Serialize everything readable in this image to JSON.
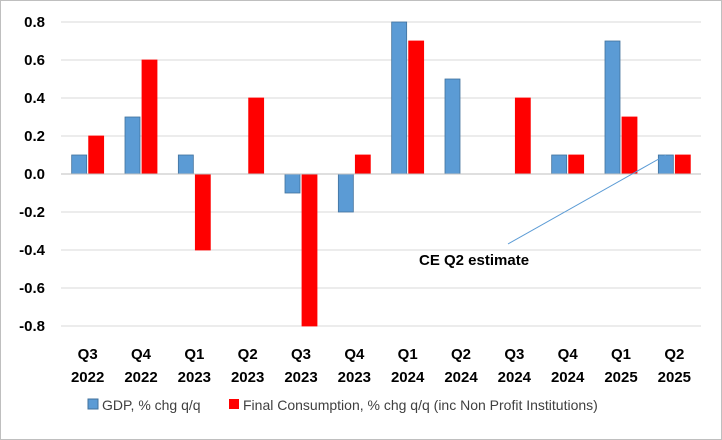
{
  "chart_data": {
    "type": "bar",
    "title": "",
    "xlabel": "",
    "ylabel": "",
    "ylim": [
      -0.8,
      0.8
    ],
    "yticks": [
      0.8,
      0.6,
      0.4,
      0.2,
      0.0,
      -0.2,
      -0.4,
      -0.6,
      -0.8
    ],
    "ytick_labels": [
      "0.8",
      "0.6",
      "0.4",
      "0.2",
      "0.0",
      "-0.2",
      "-0.4",
      "-0.6",
      "-0.8"
    ],
    "grid": true,
    "legend_position": "bottom",
    "categories": [
      {
        "quarter": "Q3",
        "year": "2022"
      },
      {
        "quarter": "Q4",
        "year": "2022"
      },
      {
        "quarter": "Q1",
        "year": "2023"
      },
      {
        "quarter": "Q2",
        "year": "2023"
      },
      {
        "quarter": "Q3",
        "year": "2023"
      },
      {
        "quarter": "Q4",
        "year": "2023"
      },
      {
        "quarter": "Q1",
        "year": "2024"
      },
      {
        "quarter": "Q2",
        "year": "2024"
      },
      {
        "quarter": "Q3",
        "year": "2024"
      },
      {
        "quarter": "Q4",
        "year": "2024"
      },
      {
        "quarter": "Q1",
        "year": "2025"
      },
      {
        "quarter": "Q2",
        "year": "2025"
      }
    ],
    "series": [
      {
        "name": "GDP, % chg q/q",
        "color": "#5B9BD5",
        "edge": "#41719C",
        "values": [
          0.1,
          0.3,
          0.1,
          0.0,
          -0.1,
          -0.2,
          0.8,
          0.5,
          0.0,
          0.1,
          0.7,
          0.1
        ]
      },
      {
        "name": "Final Consumption, % chg q/q (inc Non Profit Institutions)",
        "color": "#FF0000",
        "edge": "#FF0000",
        "values": [
          0.2,
          0.6,
          -0.4,
          0.4,
          -0.8,
          0.1,
          0.7,
          0.0,
          0.4,
          0.1,
          0.3,
          0.1
        ]
      }
    ],
    "annotations": [
      {
        "text": "CE Q2 estimate",
        "points_to": {
          "category_index": 11,
          "series": "GDP, % chg q/q",
          "value": 0.1
        }
      }
    ]
  }
}
